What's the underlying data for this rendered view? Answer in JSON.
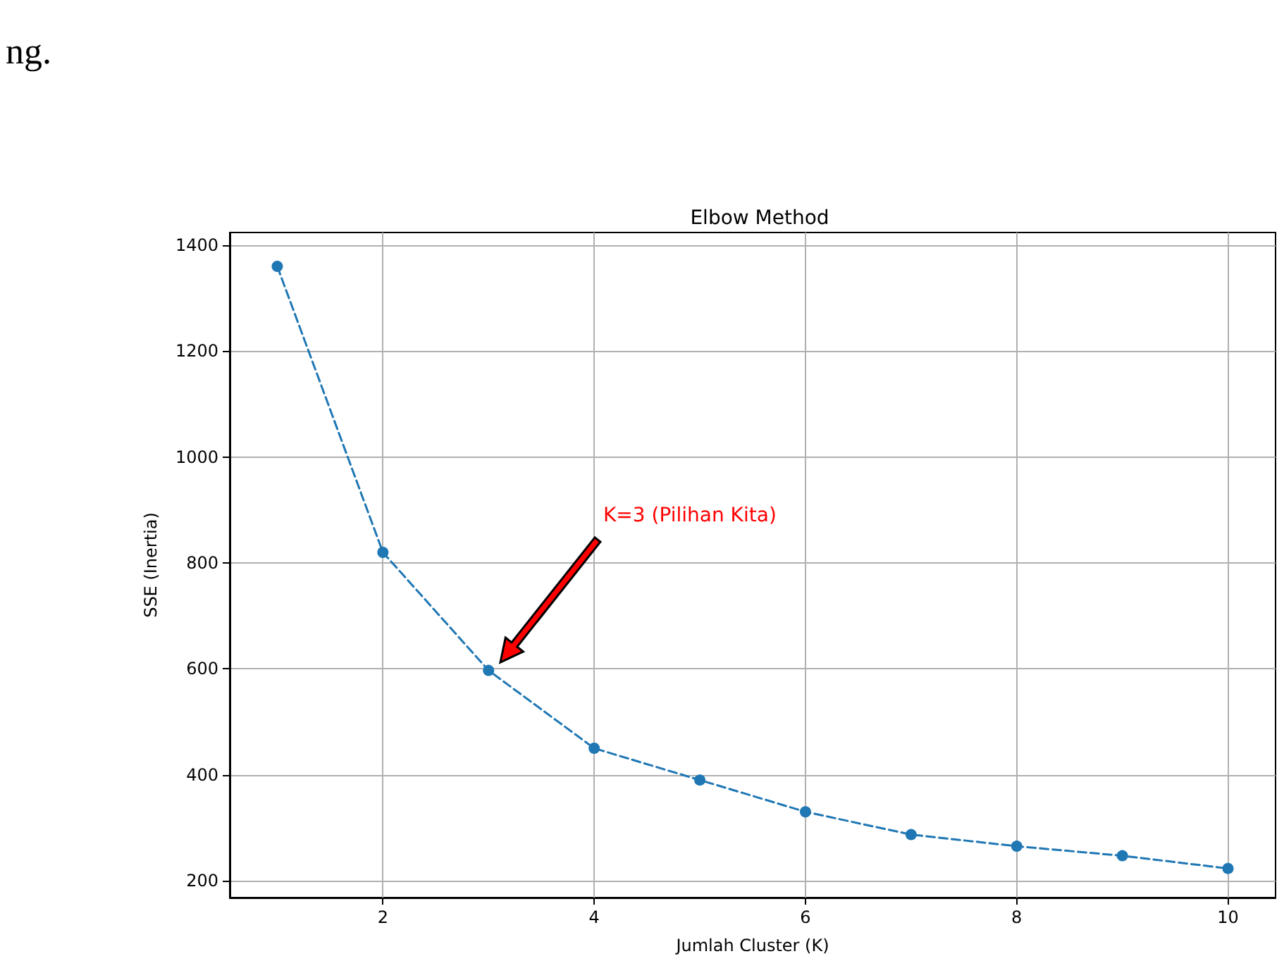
{
  "chart_data": {
    "type": "line",
    "title": "Elbow Method",
    "xlabel": "Jumlah Cluster (K)",
    "ylabel": "SSE (Inertia)",
    "x": [
      1,
      2,
      3,
      4,
      5,
      6,
      7,
      8,
      9,
      10
    ],
    "series": [
      {
        "color": "#1f77b4",
        "values": [
          1360,
          820,
          597,
          450,
          390,
          330,
          287,
          265,
          247,
          223
        ]
      }
    ],
    "xlim": [
      0.55,
      10.45
    ],
    "xticks": [
      2,
      4,
      6,
      8,
      10
    ],
    "ylim": [
      168,
      1424
    ],
    "yticks": [
      200,
      400,
      600,
      800,
      1000,
      1200,
      1400
    ],
    "grid": true,
    "marker": "circle",
    "line_style": "dashed",
    "annotations": [
      "ng.",
      "K=3 (Pilihan Kita)"
    ]
  }
}
